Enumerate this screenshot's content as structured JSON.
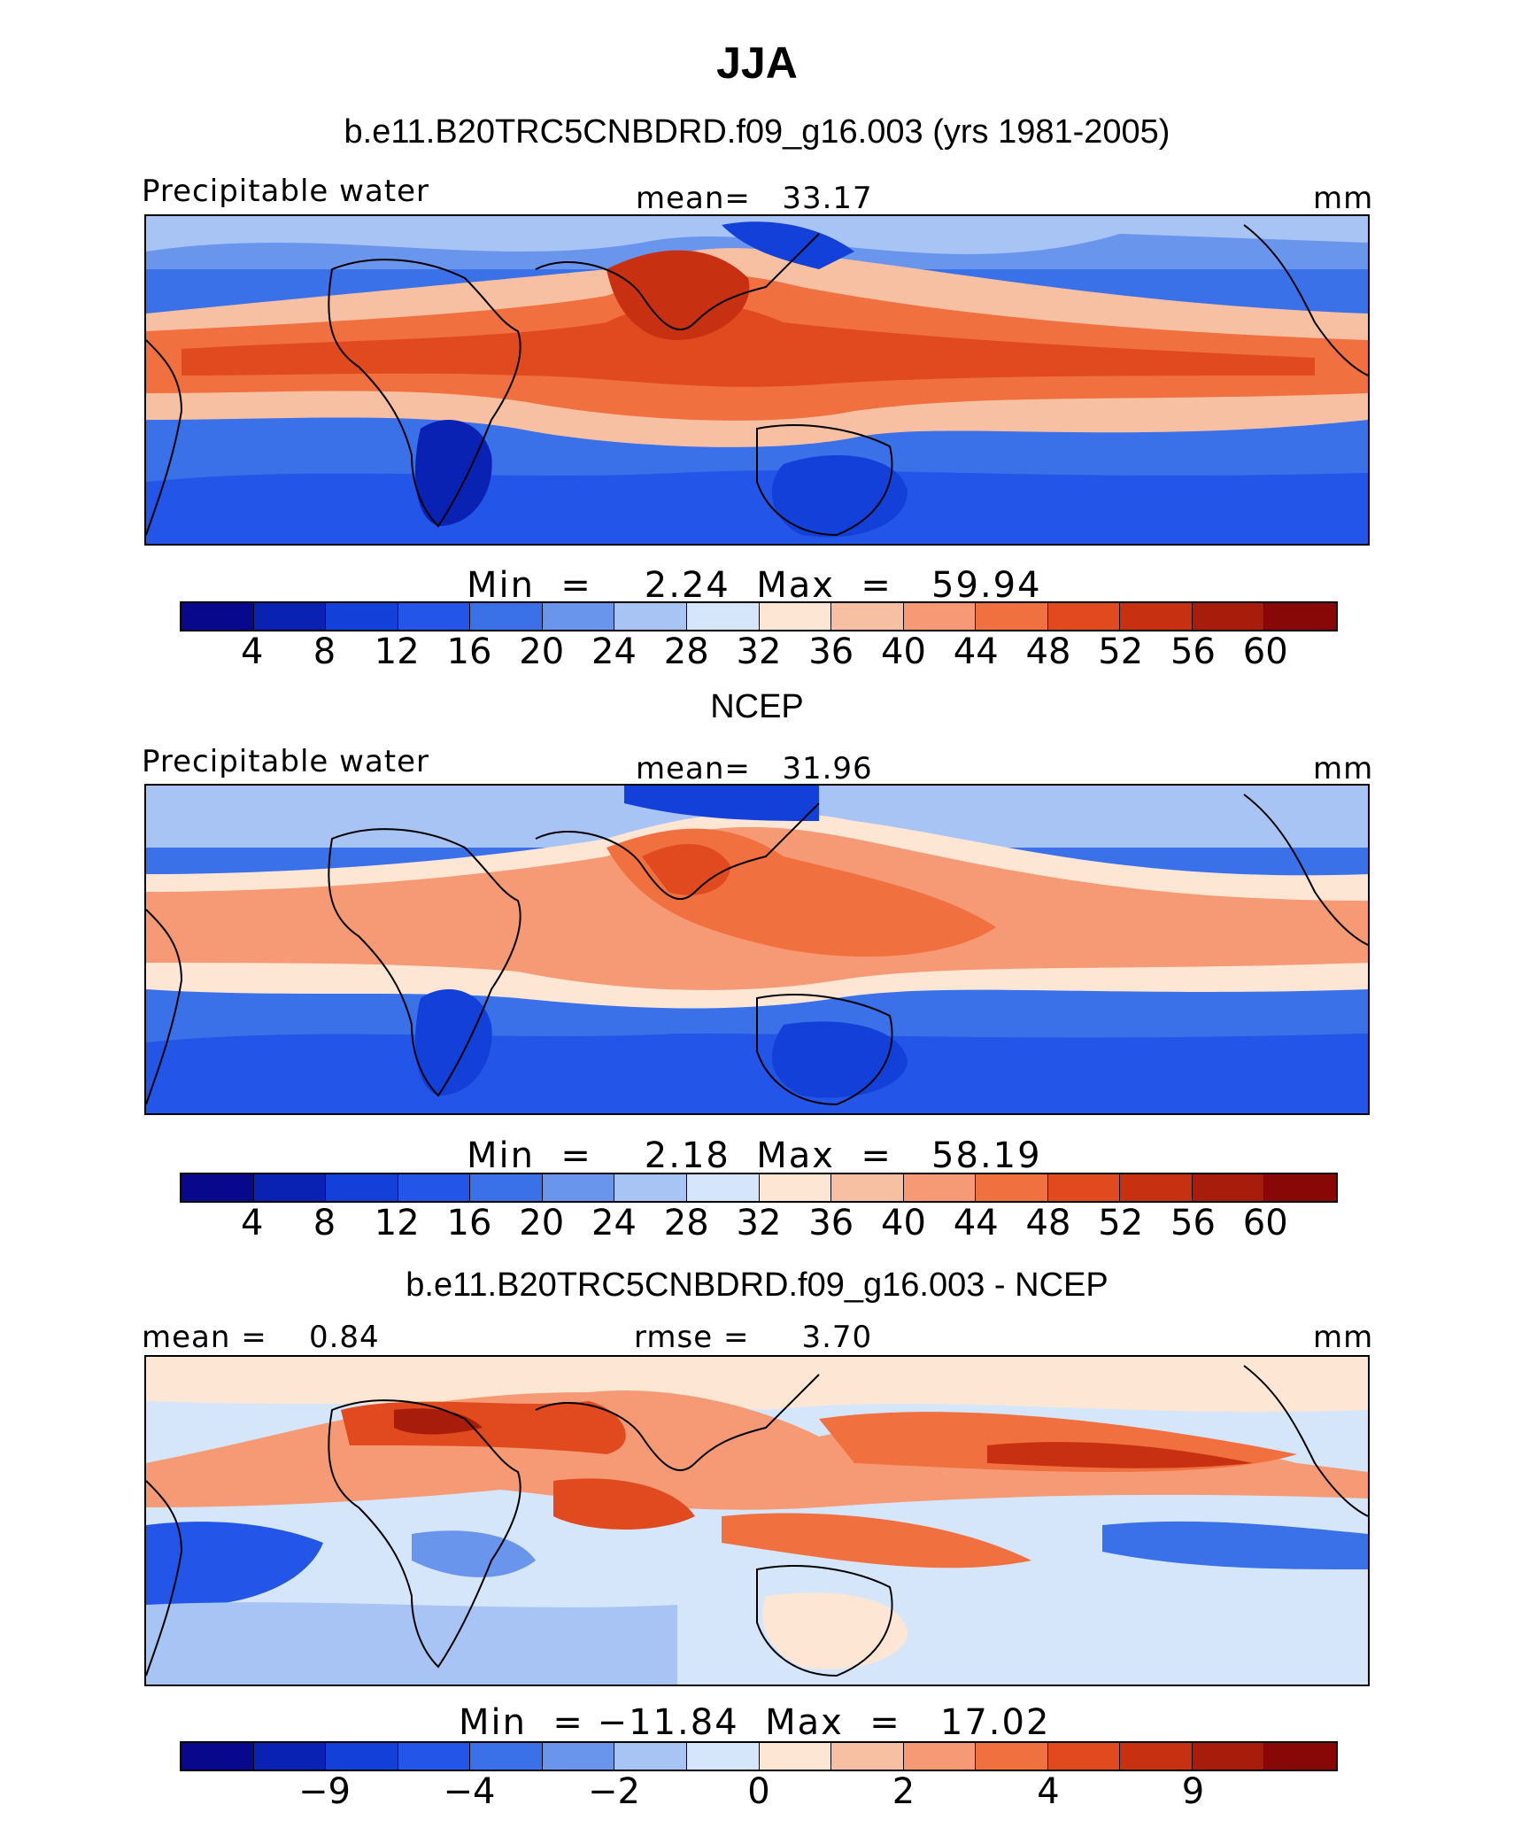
{
  "title": "JJA",
  "panels": [
    {
      "heading": "b.e11.B20TRC5CNBDRD.f09_g16.003 (yrs 1981-2005)",
      "left_label": "Precipitable water",
      "center_label": "mean=   33.17",
      "right_label": "mm",
      "minmax": "Min  =    2.24  Max  =   59.94",
      "colorbar_ticks": [
        "4",
        "8",
        "12",
        "16",
        "20",
        "24",
        "28",
        "32",
        "36",
        "40",
        "44",
        "48",
        "52",
        "56",
        "60"
      ],
      "min": 2.24,
      "max": 59.94,
      "mean": 33.17
    },
    {
      "heading": "NCEP",
      "left_label": "Precipitable water",
      "center_label": "mean=   31.96",
      "right_label": "mm",
      "minmax": "Min  =    2.18  Max  =   58.19",
      "colorbar_ticks": [
        "4",
        "8",
        "12",
        "16",
        "20",
        "24",
        "28",
        "32",
        "36",
        "40",
        "44",
        "48",
        "52",
        "56",
        "60"
      ],
      "min": 2.18,
      "max": 58.19,
      "mean": 31.96
    },
    {
      "heading": "b.e11.B20TRC5CNBDRD.f09_g16.003 - NCEP",
      "left_label": "mean =    0.84",
      "center_label": "rmse =     3.70",
      "right_label": "mm",
      "minmax": "Min  = −11.84  Max  =   17.02",
      "colorbar_ticks": [
        "−9",
        "−4",
        "−2",
        "0",
        "2",
        "4",
        "9"
      ],
      "min": -11.84,
      "max": 17.02,
      "mean": 0.84,
      "rmse": 3.7
    }
  ],
  "colors": {
    "palette": [
      "#08088c",
      "#0a22b4",
      "#1240d8",
      "#2255e8",
      "#3a70e8",
      "#6a95ec",
      "#a8c4f4",
      "#d6e6fa",
      "#fde6d4",
      "#f8c0a2",
      "#f59a74",
      "#f0703f",
      "#e04a1e",
      "#c83012",
      "#a81c0c",
      "#880808"
    ]
  }
}
